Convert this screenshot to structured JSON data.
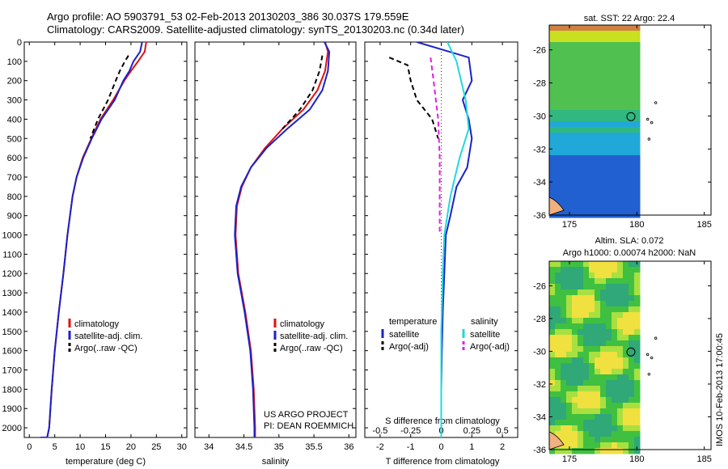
{
  "title_line1": "Argo profile: AO 5903791_53 02-Feb-2013 20130203_386 30.037S 179.559E",
  "title_line2": "Climatology: CARS2009. Satellite-adjusted climatology: synTS_20130203.nc (0.34d later)",
  "side_stamp": "IMOS 10-Feb-2013 17:00:45",
  "colors": {
    "climatology": "#e01010",
    "satellite": "#1a22c8",
    "argo": "#000000",
    "satellite_salinity": "#22d8dc",
    "argo_salinity_adj": "#e020e0"
  },
  "chart_data": [
    {
      "id": "temperature",
      "type": "line",
      "xlabel": "temperature (deg C)",
      "ylabel": "",
      "xlim": [
        -1,
        31
      ],
      "ylim": [
        2050,
        0
      ],
      "y_inverted": true,
      "xticks": [
        0,
        5,
        10,
        15,
        20,
        25,
        30
      ],
      "yticks": [
        0,
        100,
        200,
        300,
        400,
        500,
        600,
        700,
        800,
        900,
        1000,
        1100,
        1200,
        1300,
        1400,
        1500,
        1600,
        1700,
        1800,
        1900,
        2000
      ],
      "legend": [
        "climatology",
        "satellite-adj. clim.",
        "Argo(..raw -QC)"
      ],
      "series": [
        {
          "name": "climatology",
          "style": "solid",
          "color": "#e01010",
          "x": [
            23.0,
            22.7,
            21.4,
            20.0,
            18.7,
            16.5,
            14.0,
            12.2,
            10.5,
            9.3,
            8.5,
            7.5,
            6.7,
            5.8,
            5.0,
            4.4,
            3.9,
            3.5,
            3.2,
            2.9,
            2.7,
            2.5,
            2.3,
            2.2
          ],
          "y": [
            0,
            50,
            100,
            150,
            200,
            300,
            400,
            500,
            600,
            700,
            800,
            1000,
            1200,
            1400,
            1600,
            1800,
            2000,
            2050,
            2050,
            2050,
            2050,
            2050,
            2050,
            2050
          ]
        },
        {
          "name": "satellite-adj. clim.",
          "style": "solid",
          "color": "#1a22c8",
          "x": [
            22.2,
            21.8,
            20.5,
            19.7,
            18.5,
            16.8,
            14.2,
            12.3,
            10.6,
            9.3,
            8.5,
            7.5,
            6.7,
            5.8,
            5.0,
            4.4,
            3.9,
            3.5,
            3.2,
            2.9,
            2.7,
            2.5,
            2.3,
            2.2
          ],
          "y": [
            0,
            50,
            100,
            150,
            200,
            300,
            400,
            500,
            600,
            700,
            800,
            1000,
            1200,
            1400,
            1600,
            1800,
            2000,
            2050,
            2050,
            2050,
            2050,
            2050,
            2050,
            2050
          ]
        },
        {
          "name": "Argo(..raw -QC)",
          "style": "dashed",
          "color": "#000000",
          "x": [
            19.5,
            18.8,
            17.8,
            17.0,
            15.5,
            13.5,
            12.0
          ],
          "y": [
            70,
            100,
            150,
            200,
            300,
            400,
            500
          ]
        }
      ]
    },
    {
      "id": "salinity",
      "type": "line",
      "xlabel": "salinity",
      "ylabel": "",
      "xlim": [
        33.8,
        36.1
      ],
      "ylim": [
        2050,
        0
      ],
      "y_inverted": true,
      "xticks": [
        34,
        34.5,
        35,
        35.5,
        36
      ],
      "legend": [
        "climatology",
        "satellite-adj. clim.",
        "Argo(..raw -QC)"
      ],
      "annotation": [
        "US ARGO PROJECT",
        "PI: DEAN ROEMMICH"
      ],
      "series": [
        {
          "name": "climatology",
          "style": "solid",
          "color": "#e01010",
          "x": [
            35.66,
            35.7,
            35.66,
            35.55,
            35.35,
            35.05,
            34.8,
            34.6,
            34.47,
            34.4,
            34.38,
            34.42,
            34.52,
            34.6,
            34.64,
            34.66,
            34.66
          ],
          "y": [
            0,
            50,
            150,
            250,
            350,
            450,
            550,
            650,
            750,
            850,
            1000,
            1200,
            1400,
            1600,
            1800,
            2000,
            2050
          ]
        },
        {
          "name": "satellite-adj. clim.",
          "style": "solid",
          "color": "#1a22c8",
          "x": [
            35.65,
            35.72,
            35.7,
            35.62,
            35.44,
            35.12,
            34.82,
            34.6,
            34.46,
            34.39,
            34.37,
            34.41,
            34.51,
            34.59,
            34.63,
            34.65,
            34.65
          ],
          "y": [
            0,
            50,
            150,
            250,
            350,
            450,
            550,
            650,
            750,
            850,
            1000,
            1200,
            1400,
            1600,
            1800,
            2000,
            2050
          ]
        },
        {
          "name": "Argo(..raw -QC)",
          "style": "dashed",
          "color": "#000000",
          "x": [
            35.62,
            35.58,
            35.48,
            35.3,
            35.05
          ],
          "y": [
            70,
            150,
            250,
            350,
            450
          ]
        }
      ]
    },
    {
      "id": "differences",
      "type": "line",
      "xlabel": "T difference from climatology",
      "xlabel2": "S difference from climatology",
      "xlim": [
        -2.5,
        2.5
      ],
      "ylim": [
        2050,
        0
      ],
      "y_inverted": true,
      "xticks_T": [
        -2,
        -1,
        0,
        1,
        2
      ],
      "xticks_S": [
        -0.5,
        -0.25,
        0,
        0.25,
        0.5
      ],
      "legend_temperature_title": "temperature",
      "legend_salinity_title": "salinity",
      "legend": [
        "satellite",
        "Argo(-adj)",
        "satellite",
        "Argo(-adj)"
      ],
      "series": [
        {
          "name": "temperature satellite",
          "style": "solid",
          "color": "#1a22c8",
          "x": [
            -0.8,
            0.9,
            1.0,
            0.7,
            0.9,
            1.0,
            0.85,
            0.5,
            0.3,
            0.15,
            0.1,
            0.05,
            0.02,
            0.0,
            0.0
          ],
          "y": [
            0,
            80,
            200,
            300,
            400,
            500,
            650,
            750,
            900,
            1000,
            1200,
            1400,
            1600,
            1800,
            2050
          ]
        },
        {
          "name": "temperature Argo(-adj)",
          "style": "dashed",
          "color": "#000000",
          "x": [
            -1.7,
            -1.1,
            -1.0,
            -0.8,
            -0.3,
            -0.1
          ],
          "y": [
            80,
            120,
            200,
            300,
            400,
            500
          ]
        },
        {
          "name": "salinity satellite",
          "style": "solid",
          "color": "#22d8dc",
          "x": [
            0.2,
            0.5,
            0.8,
            0.9,
            0.6,
            0.3,
            0.1,
            0.05,
            0.0,
            0.0
          ],
          "y": [
            0,
            100,
            300,
            450,
            600,
            800,
            1000,
            1200,
            1500,
            2050
          ]
        },
        {
          "name": "salinity Argo(-adj)",
          "style": "dashed",
          "color": "#e020e0",
          "x": [
            -0.35,
            -0.25,
            -0.1,
            -0.05,
            -0.05,
            -0.05
          ],
          "y": [
            80,
            200,
            400,
            600,
            800,
            1000
          ]
        }
      ]
    },
    {
      "id": "sst_map",
      "type": "heatmap",
      "title": "sat. SST: 22 Argo: 22.4",
      "xlim": [
        173.5,
        185.5
      ],
      "ylim": [
        -36,
        -24.5
      ],
      "xticks": [
        175,
        180,
        185
      ],
      "yticks": [
        -26,
        -28,
        -30,
        -32,
        -34,
        -36
      ],
      "float_position": [
        179.56,
        -30.04
      ]
    },
    {
      "id": "sla_map",
      "type": "heatmap",
      "title": "Altim. SLA: 0.072",
      "subtitle": "Argo h1000: 0.00074 h2000: NaN",
      "xlim": [
        173.5,
        185.5
      ],
      "ylim": [
        -36,
        -24.5
      ],
      "xticks": [
        175,
        180,
        185
      ],
      "yticks": [
        -26,
        -28,
        -30,
        -32,
        -34,
        -36
      ],
      "float_position": [
        179.56,
        -30.04
      ]
    }
  ]
}
